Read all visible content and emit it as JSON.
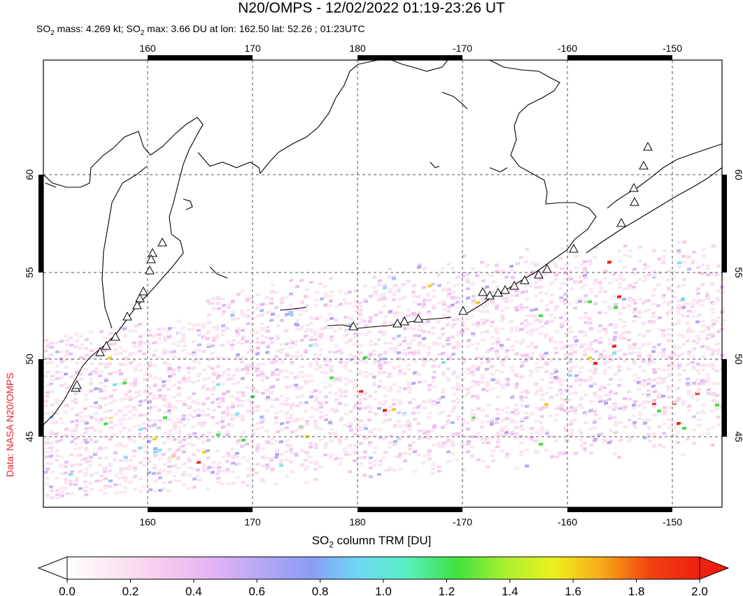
{
  "title": "N20/OMPS - 12/02/2022 01:19-23:26 UT",
  "subtitle_parts": {
    "a": "SO",
    "a_sub": "2",
    "b": " mass: 4.269 kt; SO",
    "b_sub": "2",
    "c": " max: 3.66 DU at lon: 162.50 lat: 52.26 ; 01:23UTC"
  },
  "credit": "Data: NASA N20/OMPS",
  "colorbar": {
    "label_prefix": "SO",
    "label_sub": "2",
    "label_suffix": " column TRM [DU]",
    "ticks": [
      "0.0",
      "0.2",
      "0.4",
      "0.6",
      "0.8",
      "1.0",
      "1.2",
      "1.4",
      "1.6",
      "1.8",
      "2.0"
    ],
    "colors": [
      "#ffffff",
      "#fbe6f2",
      "#f7c8ee",
      "#e2b4f5",
      "#b4a8f5",
      "#8c9cf5",
      "#6cd8f5",
      "#58f0c0",
      "#40e040",
      "#a8f030",
      "#f0f020",
      "#f8a818",
      "#f04010",
      "#f02010"
    ]
  },
  "map": {
    "lon_ticks_top": [
      "160",
      "170",
      "180",
      "-170",
      "-160",
      "-150"
    ],
    "lon_ticks_bottom": [
      "160",
      "170",
      "180",
      "-170",
      "-160",
      "-150"
    ],
    "lat_ticks_left": [
      "60",
      "55",
      "50",
      "45"
    ],
    "lat_ticks_right": [
      "60",
      "55",
      "50",
      "45"
    ],
    "lon_range": [
      150,
      215
    ],
    "lat_range": [
      40,
      67
    ],
    "volcano_icon": "volcano-triangle-icon"
  }
}
